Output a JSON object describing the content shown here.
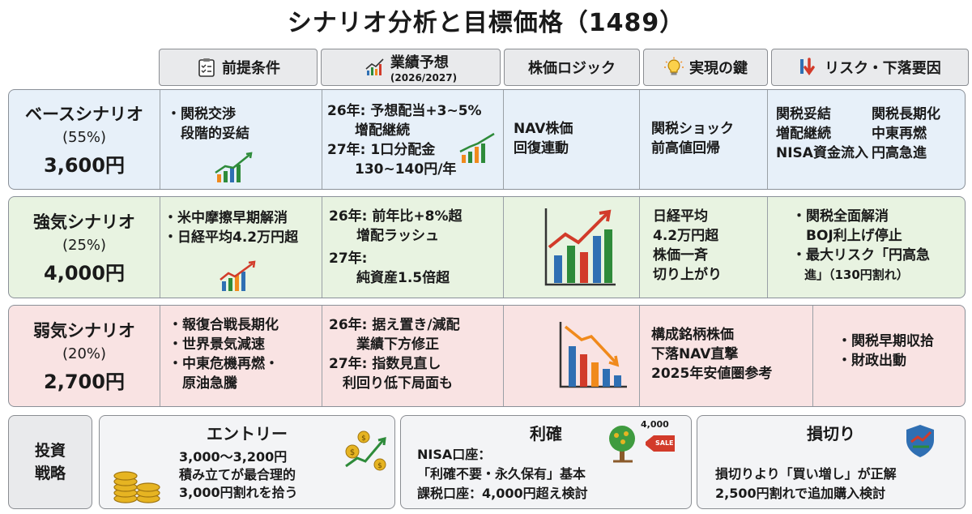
{
  "title": "シナリオ分析と目標価格（1489）",
  "headers": {
    "premise": "前提条件",
    "forecast": "業績予想",
    "forecast_sub": "(2026/2027)",
    "logic": "株価ロジック",
    "key": "実現の鍵",
    "risk": "リスク・下落要因"
  },
  "base": {
    "name": "ベースシナリオ",
    "prob": "(55%)",
    "price": "3,600円",
    "premise": [
      "・関税交渉",
      "　段階的妥結"
    ],
    "forecast": [
      "26年: 予想配当+3~5%",
      "　　增配継続",
      "27年: 1口分配金",
      "　　130~140円/年"
    ],
    "logic": [
      "NAV株価",
      "回復連動"
    ],
    "key": [
      "関税ショック",
      "前高値回帰"
    ],
    "risk_a": [
      "関税妥結",
      "増配継続",
      "NISA資金流入"
    ],
    "risk_b": [
      "関税長期化",
      "中東再燃",
      "円高急進"
    ]
  },
  "bull": {
    "name": "強気シナリオ",
    "prob": "(25%)",
    "price": "4,000円",
    "premise": [
      "・米中摩擦早期解消",
      "・日経平均4.2万円超"
    ],
    "forecast": [
      "26年: 前年比+8%超",
      "　　增配ラッシュ",
      "27年:",
      "　　純資産1.5倍超"
    ],
    "key": [
      "日経平均",
      "4.2万円超",
      "株価一斉",
      "切り上がり"
    ],
    "risk": [
      "・関税全面解消",
      "　BOJ利上げ停止",
      "・最大リスク「円高急",
      "　進」（130円割れ）"
    ]
  },
  "bear": {
    "name": "弱気シナリオ",
    "prob": "(20%)",
    "price": "2,700円",
    "premise": [
      "・報復合戦長期化",
      "・世界景気減速",
      "・中東危機再燃・",
      "　原油急騰"
    ],
    "forecast": [
      "26年: 据え置き/減配",
      "　　業績下方修正",
      "27年: 指数見直し",
      "　利回り低下局面も"
    ],
    "key": [
      "構成銘柄株価",
      "下落NAV直撃",
      "2025年安値圏参考"
    ],
    "risk": [
      "・関税早期収拾",
      "・財政出動"
    ]
  },
  "strategy": {
    "label_a": "投資",
    "label_b": "戦略",
    "entry": {
      "title": "エントリー",
      "lines": [
        "3,000〜3,200円",
        "積み立てが最合理的",
        "3,000円割れを拾う"
      ]
    },
    "profit": {
      "title": "利確",
      "badge": "4,000",
      "sale": "SALE",
      "lines": [
        "NISA口座：",
        "「利確不要・永久保有」基本",
        "課税口座：4,000円超え検討"
      ]
    },
    "stop": {
      "title": "損切り",
      "lines": [
        "損切りより「買い増し」が正解",
        "2,500円割れで追加購入検討"
      ]
    }
  },
  "colors": {
    "green": "#2e8b3a",
    "orange": "#f08a1c",
    "blue": "#2f6fb3",
    "red": "#d23b2a"
  }
}
